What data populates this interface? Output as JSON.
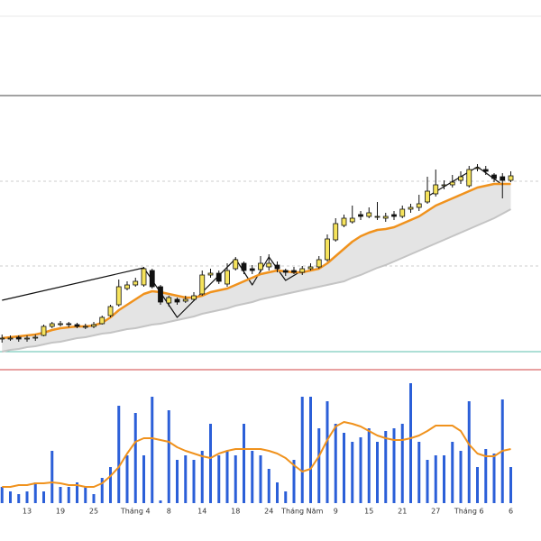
{
  "chart_data": {
    "type": "candlestick",
    "categories": [
      null,
      null,
      null,
      "13",
      null,
      null,
      null,
      "19",
      null,
      null,
      null,
      "25",
      null,
      null,
      null,
      null,
      "Tháng 4",
      null,
      null,
      null,
      "8",
      null,
      null,
      null,
      "14",
      null,
      null,
      null,
      "18",
      null,
      null,
      null,
      "24",
      null,
      null,
      null,
      "Tháng Năm",
      null,
      null,
      null,
      "9",
      null,
      null,
      null,
      "15",
      null,
      null,
      null,
      "21",
      null,
      null,
      null,
      "27",
      null,
      null,
      null,
      "Tháng 6",
      null,
      null,
      null,
      null,
      "6"
    ],
    "open": [
      24,
      25,
      26,
      24,
      25,
      28,
      38,
      40,
      41,
      40,
      37,
      38,
      41,
      50,
      62,
      80,
      84,
      84,
      100,
      82,
      64,
      68,
      66,
      68,
      74,
      95,
      97,
      85,
      102,
      108,
      102,
      101,
      104,
      106,
      100,
      100,
      98,
      102,
      104,
      112,
      134,
      150,
      154,
      162,
      160,
      160,
      158,
      162,
      160,
      168,
      170,
      176,
      185,
      194,
      195,
      200,
      194,
      214,
      212,
      206,
      204,
      200
    ],
    "high": [
      29,
      28,
      28,
      28,
      29,
      40,
      43,
      44,
      43,
      42,
      41,
      43,
      50,
      62,
      90,
      88,
      92,
      104,
      102,
      84,
      72,
      70,
      72,
      76,
      100,
      102,
      100,
      108,
      115,
      110,
      106,
      116,
      118,
      110,
      102,
      104,
      105,
      108,
      116,
      140,
      158,
      162,
      172,
      166,
      170,
      176,
      164,
      166,
      172,
      174,
      184,
      204,
      212,
      200,
      206,
      210,
      216,
      218,
      216,
      208,
      208,
      210
    ],
    "low": [
      20,
      22,
      21,
      21,
      22,
      27,
      36,
      38,
      37,
      36,
      35,
      36,
      40,
      48,
      60,
      78,
      82,
      82,
      80,
      62,
      60,
      62,
      64,
      66,
      72,
      92,
      85,
      82,
      100,
      96,
      96,
      98,
      100,
      98,
      94,
      96,
      95,
      100,
      102,
      110,
      132,
      148,
      152,
      156,
      158,
      156,
      154,
      156,
      158,
      164,
      166,
      174,
      182,
      190,
      192,
      196,
      192,
      210,
      206,
      198,
      180,
      198
    ],
    "close": [
      25,
      25,
      24,
      25,
      26,
      38,
      41,
      41,
      40,
      38,
      38,
      40,
      48,
      60,
      82,
      84,
      88,
      102,
      82,
      65,
      70,
      65,
      68,
      72,
      95,
      97,
      88,
      100,
      112,
      100,
      100,
      108,
      108,
      102,
      98,
      98,
      102,
      104,
      112,
      135,
      152,
      158,
      158,
      160,
      164,
      160,
      160,
      160,
      168,
      170,
      174,
      188,
      195,
      195,
      198,
      204,
      212,
      214,
      210,
      202,
      200,
      205
    ],
    "ylim": [
      0,
      300
    ],
    "colors": {
      "up": "#f6e35c",
      "down": "#111111"
    },
    "ma": {
      "color": "#f0921d",
      "values": [
        25,
        26,
        27,
        28,
        29,
        31,
        34,
        36,
        37,
        38,
        38,
        39,
        42,
        48,
        56,
        62,
        68,
        74,
        77,
        76,
        74,
        72,
        70,
        70,
        72,
        76,
        78,
        80,
        84,
        88,
        92,
        96,
        98,
        100,
        99,
        98,
        98,
        100,
        102,
        108,
        116,
        124,
        132,
        138,
        142,
        145,
        146,
        148,
        152,
        156,
        160,
        166,
        172,
        176,
        180,
        184,
        188,
        192,
        194,
        196,
        196,
        196
      ]
    },
    "band": {
      "color": "#e4e4e4",
      "values": [
        10,
        12,
        13,
        15,
        16,
        18,
        20,
        21,
        23,
        25,
        26,
        28,
        30,
        31,
        33,
        35,
        36,
        38,
        40,
        41,
        43,
        45,
        47,
        49,
        52,
        54,
        56,
        58,
        61,
        63,
        65,
        68,
        70,
        72,
        74,
        76,
        78,
        80,
        82,
        84,
        86,
        88,
        92,
        95,
        99,
        103,
        106,
        110,
        114,
        118,
        122,
        126,
        130,
        134,
        138,
        142,
        146,
        150,
        154,
        158,
        163,
        168
      ]
    },
    "zigzag": {
      "color": "#111111",
      "x": [
        0,
        17,
        21,
        28,
        30,
        32,
        34,
        36,
        44,
        51,
        57,
        60
      ],
      "values": [
        67,
        103,
        48,
        113,
        84,
        115,
        89,
        100,
        null,
        182,
        215,
        195
      ]
    },
    "reference_levels": [
      199,
      105
    ],
    "volume": {
      "type": "bar",
      "color": "#2b5fd8",
      "ylim": [
        0,
        140
      ],
      "values": [
        18,
        13,
        10,
        13,
        23,
        13,
        58,
        18,
        18,
        23,
        18,
        10,
        28,
        40,
        108,
        53,
        100,
        53,
        118,
        3,
        103,
        48,
        53,
        48,
        58,
        88,
        53,
        58,
        53,
        88,
        58,
        53,
        38,
        23,
        13,
        48,
        118,
        118,
        83,
        113,
        88,
        78,
        68,
        73,
        83,
        68,
        80,
        83,
        88,
        133,
        68,
        48,
        53,
        53,
        68,
        58,
        113,
        40,
        60,
        55,
        115,
        40
      ],
      "ma": {
        "color": "#f0921d",
        "values": [
          18,
          18,
          20,
          20,
          22,
          22,
          23,
          22,
          20,
          20,
          18,
          18,
          22,
          30,
          40,
          55,
          68,
          72,
          72,
          70,
          68,
          62,
          58,
          55,
          52,
          50,
          55,
          58,
          60,
          60,
          60,
          60,
          58,
          55,
          50,
          42,
          35,
          38,
          52,
          70,
          85,
          90,
          88,
          85,
          80,
          75,
          72,
          70,
          70,
          72,
          75,
          80,
          86,
          86,
          86,
          80,
          65,
          55,
          52,
          52,
          58,
          60
        ]
      }
    }
  }
}
